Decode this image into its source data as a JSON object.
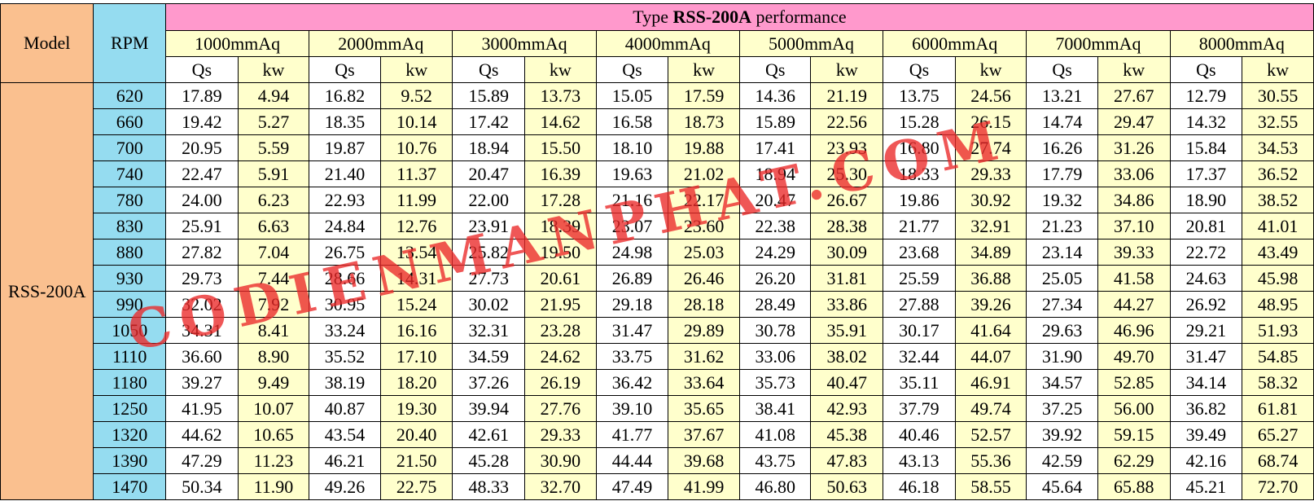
{
  "table": {
    "model_header": "Model",
    "rpm_header": "RPM",
    "title_prefix": "Type",
    "title_model": "RSS-200A",
    "title_suffix": "performance",
    "model_value": "RSS-200A",
    "pressures": [
      "1000mmAq",
      "2000mmAq",
      "3000mmAq",
      "4000mmAq",
      "5000mmAq",
      "6000mmAq",
      "7000mmAq",
      "8000mmAq"
    ],
    "sub_qs": "Qs",
    "sub_kw": "kw",
    "rows": [
      [
        "620",
        "17.89",
        "4.94",
        "16.82",
        "9.52",
        "15.89",
        "13.73",
        "15.05",
        "17.59",
        "14.36",
        "21.19",
        "13.75",
        "24.56",
        "13.21",
        "27.67",
        "12.79",
        "30.55"
      ],
      [
        "660",
        "19.42",
        "5.27",
        "18.35",
        "10.14",
        "17.42",
        "14.62",
        "16.58",
        "18.73",
        "15.89",
        "22.56",
        "15.28",
        "26.15",
        "14.74",
        "29.47",
        "14.32",
        "32.55"
      ],
      [
        "700",
        "20.95",
        "5.59",
        "19.87",
        "10.76",
        "18.94",
        "15.50",
        "18.10",
        "19.88",
        "17.41",
        "23.93",
        "16.80",
        "27.74",
        "16.26",
        "31.26",
        "15.84",
        "34.53"
      ],
      [
        "740",
        "22.47",
        "5.91",
        "21.40",
        "11.37",
        "20.47",
        "16.39",
        "19.63",
        "21.02",
        "18.94",
        "25.30",
        "18.33",
        "29.33",
        "17.79",
        "33.06",
        "17.37",
        "36.52"
      ],
      [
        "780",
        "24.00",
        "6.23",
        "22.93",
        "11.99",
        "22.00",
        "17.28",
        "21.16",
        "22.17",
        "20.47",
        "26.67",
        "19.86",
        "30.92",
        "19.32",
        "34.86",
        "18.90",
        "38.52"
      ],
      [
        "830",
        "25.91",
        "6.63",
        "24.84",
        "12.76",
        "23.91",
        "18.39",
        "23.07",
        "23.60",
        "22.38",
        "28.38",
        "21.77",
        "32.91",
        "21.23",
        "37.10",
        "20.81",
        "41.01"
      ],
      [
        "880",
        "27.82",
        "7.04",
        "26.75",
        "13.54",
        "25.82",
        "19.50",
        "24.98",
        "25.03",
        "24.29",
        "30.09",
        "23.68",
        "34.89",
        "23.14",
        "39.33",
        "22.72",
        "43.49"
      ],
      [
        "930",
        "29.73",
        "7.44",
        "28.66",
        "14.31",
        "27.73",
        "20.61",
        "26.89",
        "26.46",
        "26.20",
        "31.81",
        "25.59",
        "36.88",
        "25.05",
        "41.58",
        "24.63",
        "45.98"
      ],
      [
        "990",
        "32.02",
        "7.92",
        "30.95",
        "15.24",
        "30.02",
        "21.95",
        "29.18",
        "28.18",
        "28.49",
        "33.86",
        "27.88",
        "39.26",
        "27.34",
        "44.27",
        "26.92",
        "48.95"
      ],
      [
        "1050",
        "34.31",
        "8.41",
        "33.24",
        "16.16",
        "32.31",
        "23.28",
        "31.47",
        "29.89",
        "30.78",
        "35.91",
        "30.17",
        "41.64",
        "29.63",
        "46.96",
        "29.21",
        "51.93"
      ],
      [
        "1110",
        "36.60",
        "8.90",
        "35.52",
        "17.10",
        "34.59",
        "24.62",
        "33.75",
        "31.62",
        "33.06",
        "38.02",
        "32.44",
        "44.07",
        "31.90",
        "49.70",
        "31.47",
        "54.85"
      ],
      [
        "1180",
        "39.27",
        "9.49",
        "38.19",
        "18.20",
        "37.26",
        "26.19",
        "36.42",
        "33.64",
        "35.73",
        "40.47",
        "35.11",
        "46.91",
        "34.57",
        "52.85",
        "34.14",
        "58.32"
      ],
      [
        "1250",
        "41.95",
        "10.07",
        "40.87",
        "19.30",
        "39.94",
        "27.76",
        "39.10",
        "35.65",
        "38.41",
        "42.93",
        "37.79",
        "49.74",
        "37.25",
        "56.00",
        "36.82",
        "61.81"
      ],
      [
        "1320",
        "44.62",
        "10.65",
        "43.54",
        "20.40",
        "42.61",
        "29.33",
        "41.77",
        "37.67",
        "41.08",
        "45.38",
        "40.46",
        "52.57",
        "39.92",
        "59.15",
        "39.49",
        "65.27"
      ],
      [
        "1390",
        "47.29",
        "11.23",
        "46.21",
        "21.50",
        "45.28",
        "30.90",
        "44.44",
        "39.68",
        "43.75",
        "47.83",
        "43.13",
        "55.36",
        "42.59",
        "62.29",
        "42.16",
        "68.74"
      ],
      [
        "1470",
        "50.34",
        "11.90",
        "49.26",
        "22.75",
        "48.33",
        "32.70",
        "47.49",
        "41.99",
        "46.80",
        "50.63",
        "46.18",
        "58.55",
        "45.64",
        "65.88",
        "45.21",
        "72.70"
      ]
    ]
  },
  "watermark": "CODIENMANPHAT.COM",
  "colors": {
    "model_bg": "#fac08f",
    "rpm_bg": "#95dcf0",
    "title_bg": "#ff99cc",
    "pressure_bg": "#ffffcc",
    "kw_bg": "#ffffcc",
    "qs_bg": "#ffffff",
    "watermark": "#eb2828"
  }
}
